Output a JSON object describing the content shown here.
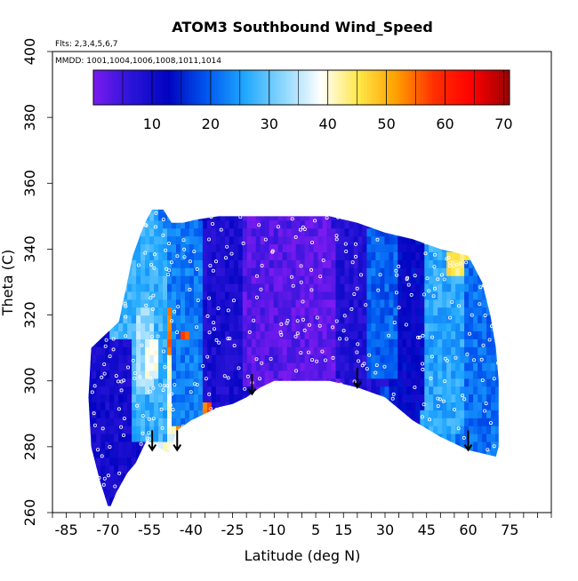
{
  "title": "ATOM3 Southbound Wind_Speed",
  "flights_note": "Flts: 2,3,4,5,6,7",
  "dates_note": "MMDD: 1001,1004,1006,1008,1011,1014",
  "chart_data": {
    "type": "heatmap",
    "title": "ATOM3 Southbound Wind_Speed",
    "xlabel": "Latitude (deg N)",
    "ylabel": "Theta (C)",
    "xlim": [
      -90,
      90
    ],
    "ylim": [
      260,
      400
    ],
    "x_tick_labels": [
      "-85",
      "-70",
      "-55",
      "-40",
      "-25",
      "-10",
      "5",
      "15",
      "30",
      "45",
      "60",
      "75"
    ],
    "x_ticks": [
      -85,
      -70,
      -55,
      -40,
      -25,
      -10,
      5,
      15,
      30,
      45,
      60,
      75
    ],
    "x_minor_ticks": [
      -90,
      -85,
      -80,
      -75,
      -70,
      -65,
      -60,
      -55,
      -50,
      -45,
      -40,
      -35,
      -30,
      -25,
      -20,
      -15,
      -10,
      -5,
      0,
      5,
      10,
      15,
      20,
      25,
      30,
      35,
      40,
      45,
      50,
      55,
      60,
      65,
      70,
      75,
      80,
      85,
      90
    ],
    "y_ticks": [
      260,
      280,
      300,
      320,
      340,
      360,
      380,
      400
    ],
    "colorbar": {
      "min": 0,
      "max": 71,
      "ticks": [
        10,
        20,
        30,
        40,
        50,
        60,
        70
      ],
      "colors": [
        "#7a1bf0",
        "#2a14d8",
        "#0004c0",
        "#0058f0",
        "#20a8ff",
        "#8ad6ff",
        "#ffffff",
        "#ffe84a",
        "#ffa000",
        "#ff3000",
        "#ff0000",
        "#9a0000"
      ]
    },
    "data_boundary": [
      [
        -76,
        310
      ],
      [
        -71,
        314
      ],
      [
        -66,
        318
      ],
      [
        -61,
        338
      ],
      [
        -58,
        345
      ],
      [
        -56,
        349
      ],
      [
        -54,
        352
      ],
      [
        -50,
        352
      ],
      [
        -47,
        348
      ],
      [
        -43,
        348
      ],
      [
        -38,
        349
      ],
      [
        -30,
        350
      ],
      [
        -20,
        350
      ],
      [
        -10,
        350
      ],
      [
        0,
        350
      ],
      [
        10,
        350
      ],
      [
        20,
        348
      ],
      [
        30,
        345
      ],
      [
        40,
        343
      ],
      [
        50,
        340
      ],
      [
        60,
        338
      ],
      [
        65,
        330
      ],
      [
        68,
        320
      ],
      [
        70,
        310
      ],
      [
        71,
        300
      ],
      [
        71,
        280
      ],
      [
        70,
        277
      ],
      [
        60,
        279
      ],
      [
        50,
        283
      ],
      [
        40,
        288
      ],
      [
        30,
        295
      ],
      [
        20,
        298
      ],
      [
        10,
        300
      ],
      [
        0,
        300
      ],
      [
        -10,
        300
      ],
      [
        -15,
        298
      ],
      [
        -20,
        295
      ],
      [
        -25,
        293
      ],
      [
        -30,
        292
      ],
      [
        -35,
        290
      ],
      [
        -40,
        288
      ],
      [
        -45,
        285
      ],
      [
        -48,
        278
      ],
      [
        -52,
        280
      ],
      [
        -56,
        282
      ],
      [
        -60,
        275
      ],
      [
        -63,
        272
      ],
      [
        -67,
        266
      ],
      [
        -69,
        262
      ],
      [
        -70,
        262
      ],
      [
        -73,
        270
      ],
      [
        -76,
        280
      ],
      [
        -77,
        295
      ]
    ],
    "regions": [
      {
        "lat_range": [
          -77,
          -62
        ],
        "theta_range": [
          262,
          312
        ],
        "value": 10
      },
      {
        "lat_range": [
          -66,
          -50
        ],
        "theta_range": [
          280,
          345
        ],
        "value": 27
      },
      {
        "lat_range": [
          -60,
          -54
        ],
        "theta_range": [
          295,
          320
        ],
        "value": 33
      },
      {
        "lat_range": [
          -48,
          -36
        ],
        "theta_range": [
          285,
          348
        ],
        "value": 22
      },
      {
        "lat_range": [
          -36,
          -24
        ],
        "theta_range": [
          292,
          349
        ],
        "value": 9
      },
      {
        "lat_range": [
          -22,
          4
        ],
        "theta_range": [
          296,
          350
        ],
        "value": 3
      },
      {
        "lat_range": [
          -10,
          12
        ],
        "theta_range": [
          300,
          335
        ],
        "value": 2
      },
      {
        "lat_range": [
          14,
          30
        ],
        "theta_range": [
          296,
          345
        ],
        "value": 8
      },
      {
        "lat_range": [
          22,
          36
        ],
        "theta_range": [
          300,
          345
        ],
        "value": 20
      },
      {
        "lat_range": [
          34,
          44
        ],
        "theta_range": [
          290,
          343
        ],
        "value": 12
      },
      {
        "lat_range": [
          44,
          58
        ],
        "theta_range": [
          282,
          340
        ],
        "value": 26
      },
      {
        "lat_range": [
          58,
          71
        ],
        "theta_range": [
          276,
          335
        ],
        "value": 21
      },
      {
        "lat_range": [
          52,
          58
        ],
        "theta_range": [
          330,
          338
        ],
        "value": 44
      },
      {
        "lat_range": [
          -44,
          -42
        ],
        "theta_range": [
          311,
          314
        ],
        "value": 55
      },
      {
        "lat_range": [
          -57,
          -53
        ],
        "theta_range": [
          300,
          312
        ],
        "value": 39
      }
    ],
    "tropopause_markers": [
      {
        "lat": -54,
        "theta": 285
      },
      {
        "lat": -45,
        "theta": 285
      },
      {
        "lat": -18,
        "theta": 302
      },
      {
        "lat": 20,
        "theta": 304
      },
      {
        "lat": 60,
        "theta": 285
      }
    ]
  }
}
